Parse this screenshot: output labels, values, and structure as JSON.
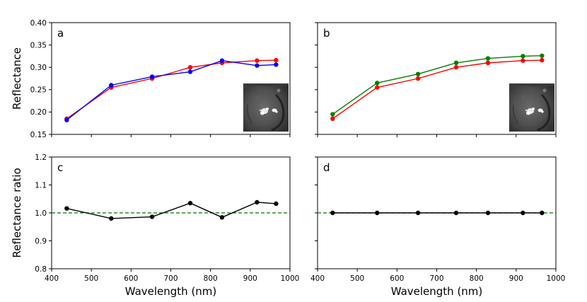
{
  "figure": {
    "colors": {
      "red": "#ff0000",
      "blue": "#0000ff",
      "green": "#008000",
      "black": "#000000",
      "ref_line": "#007000"
    }
  },
  "chart_data": [
    {
      "panel": "a",
      "type": "line",
      "ylabel": "Reflectance",
      "xlabel": "",
      "xlim": [
        400,
        1000
      ],
      "ylim": [
        0.15,
        0.4
      ],
      "yticks": [
        0.15,
        0.2,
        0.25,
        0.3,
        0.35,
        0.4
      ],
      "ytick_labels": [
        "0.15",
        "0.20",
        "0.25",
        "0.30",
        "0.35",
        "0.40"
      ],
      "x_tick_labels_visible": false,
      "y_tick_labels_visible": true,
      "inset_image": "crater-inset",
      "x": [
        438,
        550,
        653,
        749,
        829,
        917,
        965
      ],
      "series": [
        {
          "color": "#ff0000",
          "values": [
            0.185,
            0.255,
            0.275,
            0.3,
            0.31,
            0.315,
            0.316
          ]
        },
        {
          "color": "#0000ff",
          "values": [
            0.182,
            0.26,
            0.279,
            0.29,
            0.315,
            0.304,
            0.306
          ]
        }
      ]
    },
    {
      "panel": "b",
      "type": "line",
      "ylabel": "",
      "xlabel": "",
      "xlim": [
        400,
        1000
      ],
      "ylim": [
        0.15,
        0.4
      ],
      "x_tick_labels_visible": false,
      "y_tick_labels_visible": false,
      "inset_image": "crater-inset",
      "x": [
        438,
        550,
        653,
        749,
        829,
        917,
        965
      ],
      "series": [
        {
          "color": "#ff0000",
          "values": [
            0.185,
            0.255,
            0.275,
            0.3,
            0.31,
            0.315,
            0.316
          ]
        },
        {
          "color": "#008000",
          "values": [
            0.195,
            0.265,
            0.285,
            0.31,
            0.32,
            0.325,
            0.326
          ]
        }
      ]
    },
    {
      "panel": "c",
      "type": "line",
      "ylabel": "Reflectance ratio",
      "xlabel": "Wavelength (nm)",
      "xlim": [
        400,
        1000
      ],
      "ylim": [
        0.8,
        1.2
      ],
      "yticks": [
        0.8,
        0.9,
        1.0,
        1.1,
        1.2
      ],
      "ytick_labels": [
        "0.8",
        "0.9",
        "1.0",
        "1.1",
        "1.2"
      ],
      "xticks": [
        400,
        500,
        600,
        700,
        800,
        900,
        1000
      ],
      "xtick_labels": [
        "400",
        "500",
        "600",
        "700",
        "800",
        "900",
        "1000"
      ],
      "x_tick_labels_visible": true,
      "y_tick_labels_visible": true,
      "reference_line": {
        "y": 1.0,
        "style": "dashed",
        "color": "#007000"
      },
      "x": [
        438,
        550,
        653,
        749,
        829,
        917,
        965
      ],
      "series": [
        {
          "color": "#000000",
          "values": [
            1.016,
            0.98,
            0.986,
            1.035,
            0.984,
            1.038,
            1.033
          ]
        }
      ]
    },
    {
      "panel": "d",
      "type": "line",
      "ylabel": "",
      "xlabel": "Wavelength (nm)",
      "xlim": [
        400,
        1000
      ],
      "ylim": [
        0.8,
        1.2
      ],
      "xticks": [
        400,
        500,
        600,
        700,
        800,
        900,
        1000
      ],
      "xtick_labels": [
        "400",
        "500",
        "600",
        "700",
        "800",
        "900",
        "1000"
      ],
      "x_tick_labels_visible": true,
      "y_tick_labels_visible": false,
      "reference_line": {
        "y": 1.0,
        "style": "dashed",
        "color": "#007000"
      },
      "x": [
        438,
        550,
        653,
        749,
        829,
        917,
        965
      ],
      "series": [
        {
          "color": "#000000",
          "values": [
            1.0,
            1.0,
            1.0,
            1.0,
            1.0,
            1.0,
            1.0
          ]
        }
      ]
    }
  ]
}
